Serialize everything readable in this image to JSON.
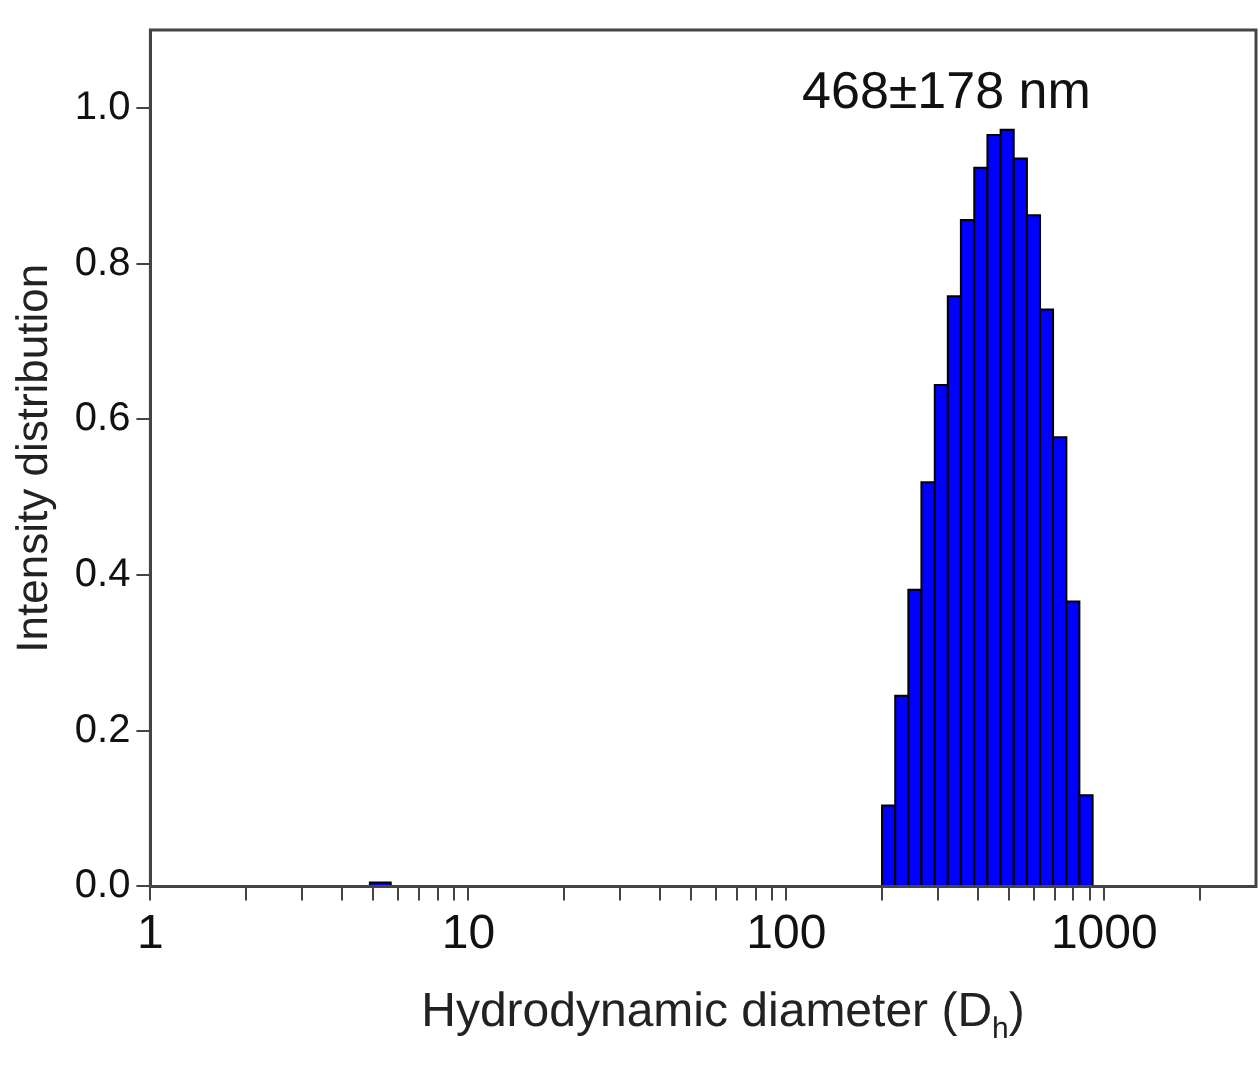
{
  "chart_data": {
    "type": "histogram",
    "xlabel": "Hydrodynamic diameter (D$_{h}$)",
    "ylabel": "Intensity distribution",
    "annotations": [
      "468±178 nm"
    ],
    "color": "#0000ff",
    "bins": [
      4.9,
      5.7,
      200,
      220,
      242,
      266,
      293,
      322,
      354,
      390,
      429,
      472,
      519,
      571,
      628,
      690,
      760,
      835,
      919
    ],
    "values": [
      0.005,
      null,
      0.104,
      0.245,
      0.381,
      0.519,
      0.644,
      0.758,
      0.856,
      0.923,
      0.965,
      0.972,
      0.935,
      0.862,
      0.741,
      0.577,
      0.366,
      0.117
    ],
    "log": "x",
    "xlim": [
      1,
      3000
    ],
    "xticks": [
      1,
      {
        "value": 2,
        "label": null
      },
      {
        "value": 3,
        "label": null
      },
      {
        "value": 4,
        "label": null
      },
      {
        "value": 5,
        "label": null
      },
      {
        "value": 6,
        "label": null
      },
      {
        "value": 7,
        "label": null
      },
      {
        "value": 8,
        "label": null
      },
      {
        "value": 9,
        "label": null
      },
      10,
      {
        "value": 20,
        "label": null
      },
      {
        "value": 30,
        "label": null
      },
      {
        "value": 40,
        "label": null
      },
      {
        "value": 50,
        "label": null
      },
      {
        "value": 60,
        "label": null
      },
      {
        "value": 70,
        "label": null
      },
      {
        "value": 80,
        "label": null
      },
      {
        "value": 90,
        "label": null
      },
      100,
      {
        "value": 200,
        "label": null
      },
      {
        "value": 300,
        "label": null
      },
      {
        "value": 400,
        "label": null
      },
      {
        "value": 500,
        "label": null
      },
      {
        "value": 600,
        "label": null
      },
      {
        "value": 700,
        "label": null
      },
      {
        "value": 800,
        "label": null
      },
      {
        "value": 900,
        "label": null
      },
      1000,
      {
        "value": 2000,
        "label": null
      }
    ],
    "ylim": [
      0,
      1.1
    ],
    "yticks": [
      {
        "value": 0,
        "label": "0.0"
      },
      {
        "value": 0.2,
        "label": "0.2"
      },
      {
        "value": 0.4,
        "label": "0.4"
      },
      {
        "value": 0.6,
        "label": "0.6"
      },
      {
        "value": 0.8,
        "label": "0.8"
      },
      {
        "value": 1,
        "label": "1.0"
      }
    ],
    "grid": false,
    "legend": false
  }
}
